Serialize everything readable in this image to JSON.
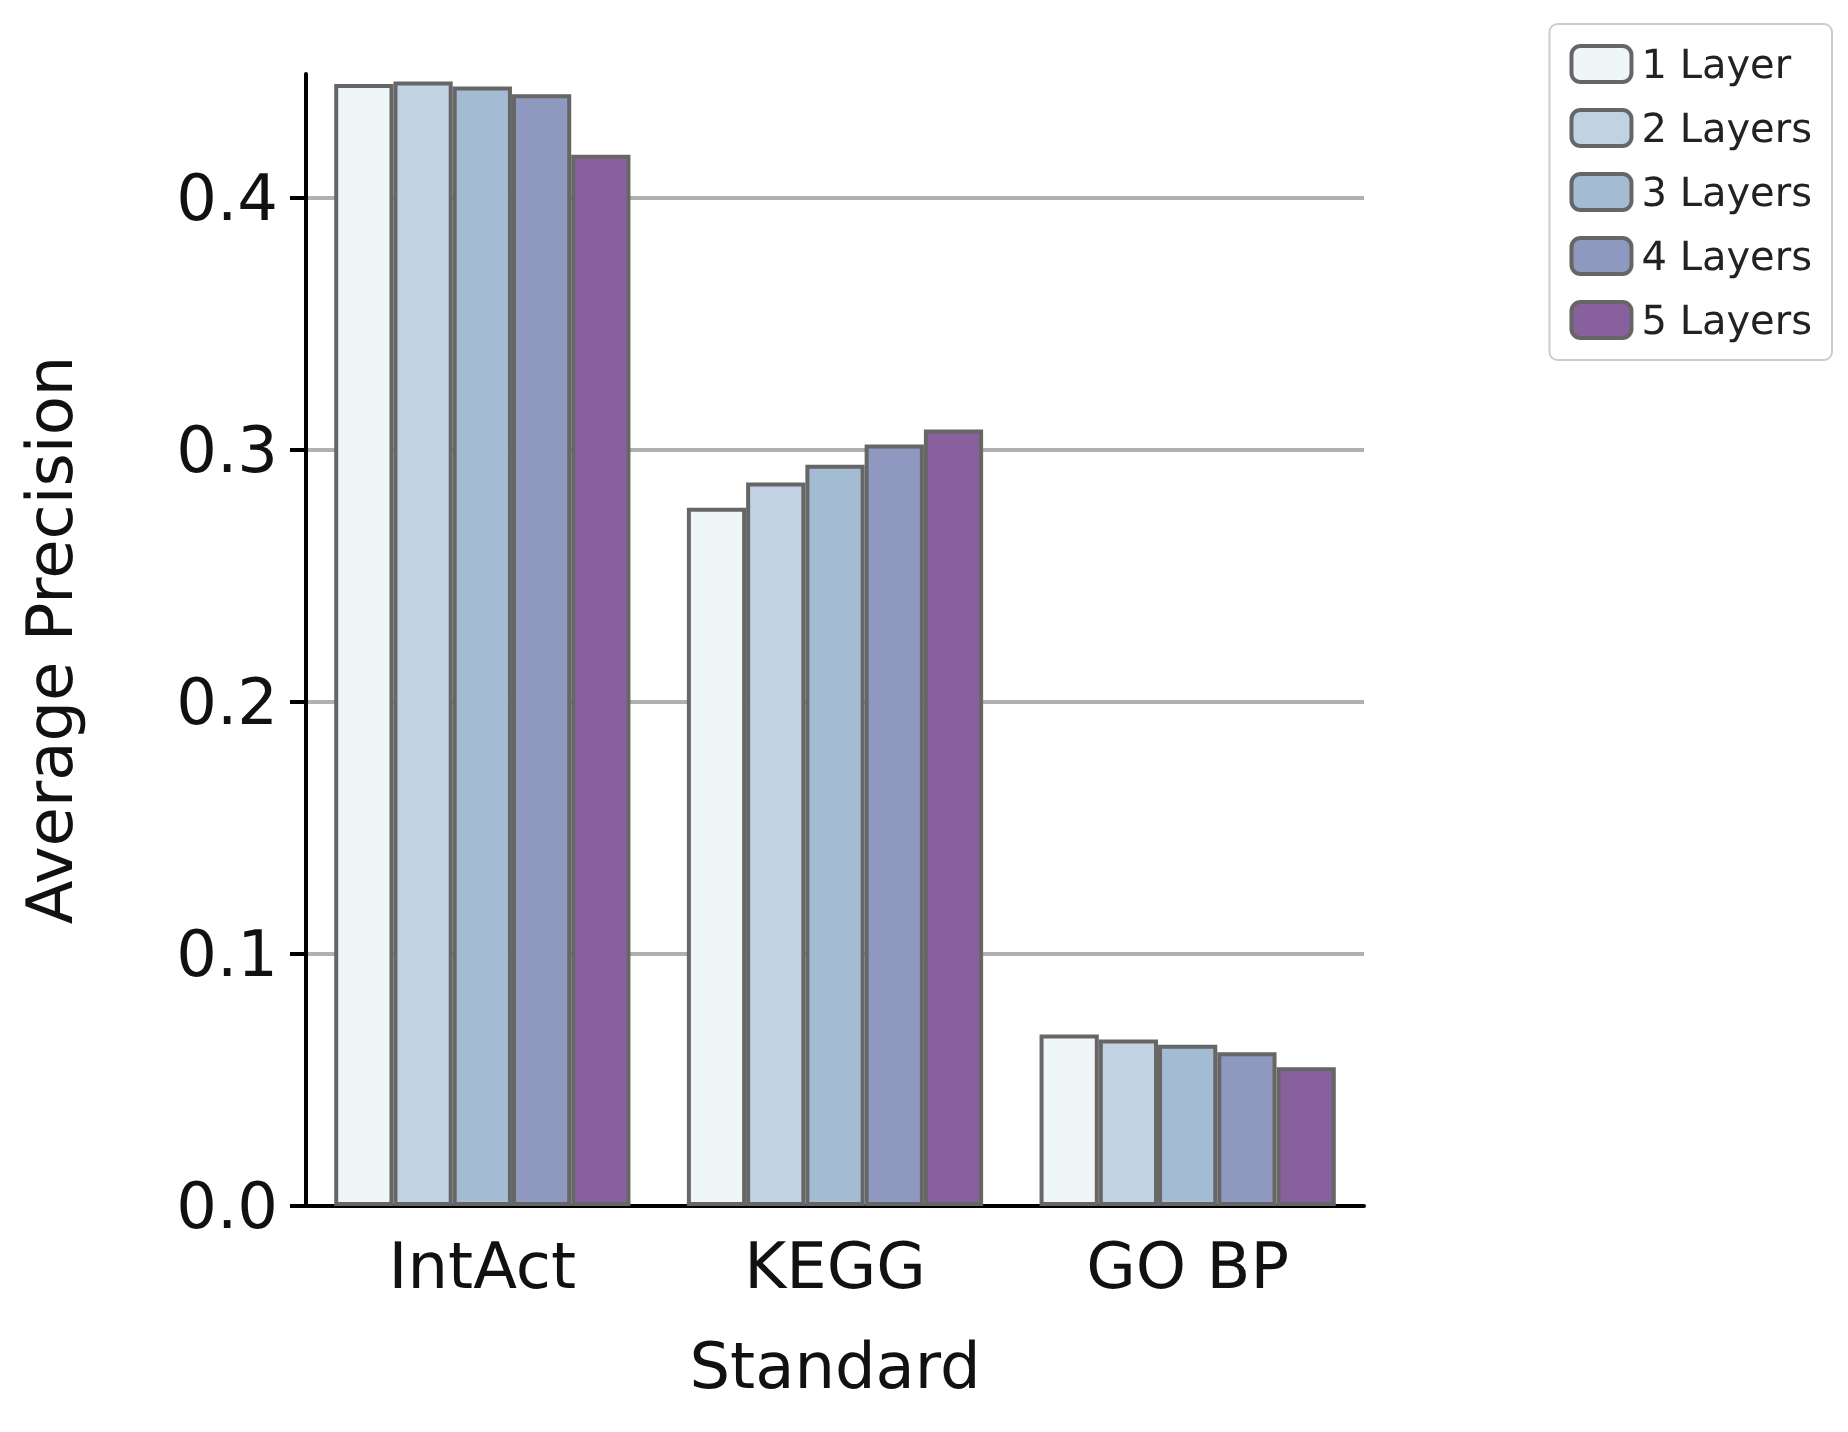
{
  "chart_data": {
    "type": "bar",
    "xlabel": "Standard",
    "ylabel": "Average Precision",
    "categories": [
      "IntAct",
      "KEGG",
      "GO BP"
    ],
    "series": [
      {
        "name": "1 Layer",
        "color": "#eff6f8",
        "values": [
          0.445,
          0.277,
          0.068
        ]
      },
      {
        "name": "2 Layers",
        "color": "#c1d3e3",
        "values": [
          0.446,
          0.287,
          0.066
        ]
      },
      {
        "name": "3 Layers",
        "color": "#a3bbd3",
        "values": [
          0.444,
          0.294,
          0.064
        ]
      },
      {
        "name": "4 Layers",
        "color": "#8f98bf",
        "values": [
          0.441,
          0.302,
          0.061
        ]
      },
      {
        "name": "5 Layers",
        "color": "#88609e",
        "values": [
          0.417,
          0.308,
          0.055
        ]
      }
    ],
    "ylim": [
      0,
      0.449
    ],
    "yticks": [
      {
        "value": 0,
        "label": "0.0"
      },
      0.1,
      0.2,
      0.3,
      0.4
    ],
    "grid": "y",
    "legend": "top right"
  }
}
